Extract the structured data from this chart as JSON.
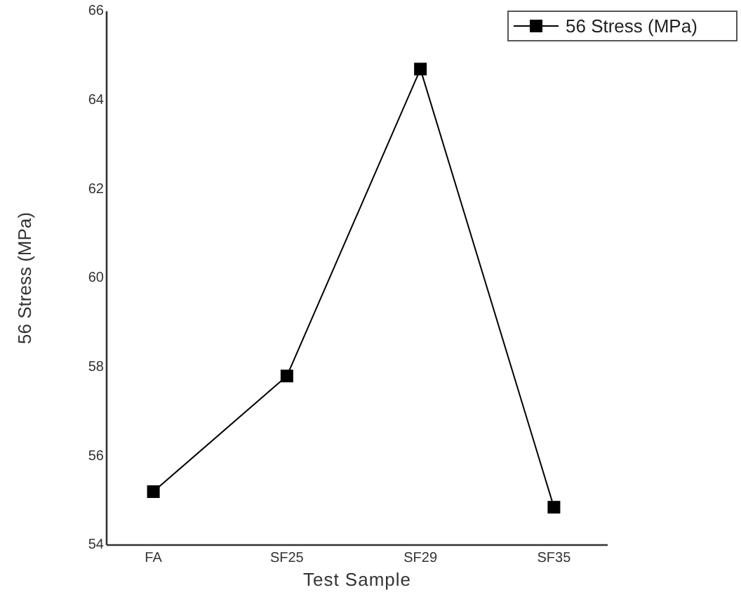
{
  "chart_data": {
    "type": "line",
    "xlabel": "Test Sample",
    "ylabel": "56 Stress (MPa)",
    "categories": [
      "FA",
      "SF25",
      "SF29",
      "SF35"
    ],
    "series": [
      {
        "name": "56 Stress (MPa)",
        "color": "#000000",
        "values": [
          55.2,
          57.8,
          64.7,
          54.85
        ]
      }
    ],
    "ylim": [
      54,
      66
    ],
    "yticks": [
      54,
      56,
      58,
      60,
      62,
      64,
      66
    ],
    "marker": "square",
    "legend": "top right",
    "grid": false
  }
}
